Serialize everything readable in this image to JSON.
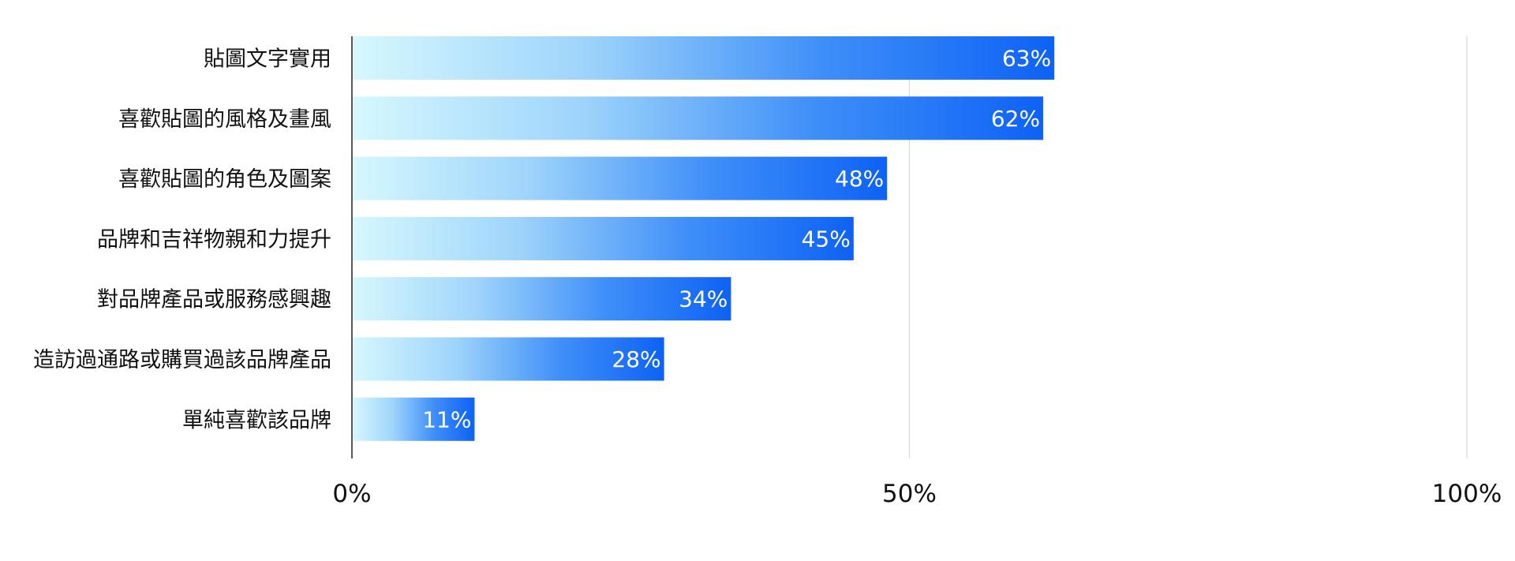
{
  "chart_data": {
    "type": "bar",
    "orientation": "horizontal",
    "categories": [
      "貼圖文字實用",
      "喜歡貼圖的風格及畫風",
      "喜歡貼圖的角色及圖案",
      "品牌和吉祥物親和力提升",
      "對品牌產品或服務感興趣",
      "造訪過通路或購買過該品牌產品",
      "單純喜歡該品牌"
    ],
    "values": [
      63,
      62,
      48,
      45,
      34,
      28,
      11
    ],
    "value_labels": [
      "63%",
      "62%",
      "48%",
      "45%",
      "34%",
      "28%",
      "11%"
    ],
    "xlim": [
      0,
      100
    ],
    "x_ticks": [
      0,
      50,
      100
    ],
    "x_tick_labels": [
      "0%",
      "50%",
      "100%"
    ],
    "grid": "vertical",
    "legend": "none",
    "bar_gradient": [
      "#d6f8fd",
      "#9ed4fb",
      "#3f8ff9",
      "#0e62f4"
    ],
    "title": "",
    "xlabel": "",
    "ylabel": ""
  }
}
